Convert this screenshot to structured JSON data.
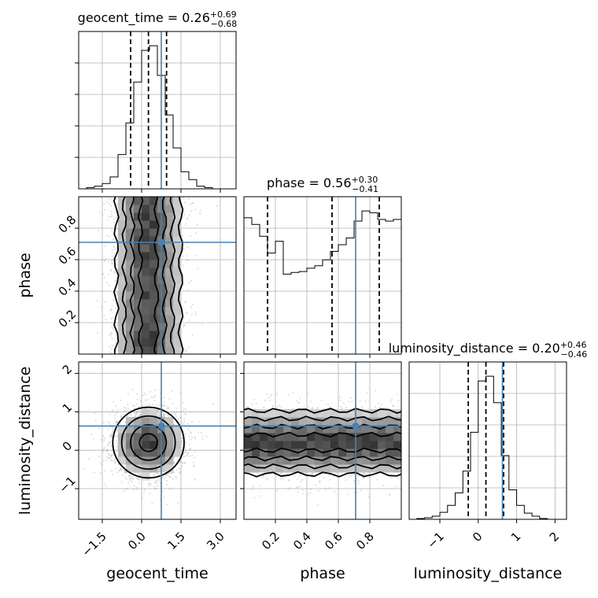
{
  "chart_data": {
    "type": "corner",
    "parameters": [
      "geocent_time",
      "phase",
      "luminosity_distance"
    ],
    "truths": {
      "geocent_time": 0.75,
      "phase": 0.71,
      "luminosity_distance": 0.63
    },
    "colors": {
      "truth": "#4682b4",
      "line": "#000000",
      "grid": "#b0b0b0",
      "hist2d_dark": "#333333",
      "scatter": "#999999"
    },
    "grid": true,
    "axes": {
      "geocent_time": {
        "range": [
          -2.4,
          3.6
        ],
        "ticks": [
          -1.5,
          0.0,
          1.5,
          3.0
        ],
        "tick_labels": [
          "−1.5",
          "0.0",
          "1.5",
          "3.0"
        ]
      },
      "phase": {
        "range": [
          0.0,
          1.0
        ],
        "ticks": [
          0.2,
          0.4,
          0.6,
          0.8
        ],
        "tick_labels": [
          "0.2",
          "0.4",
          "0.6",
          "0.8"
        ]
      },
      "luminosity_distance": {
        "range": [
          -1.8,
          2.3
        ],
        "ticks": [
          -1,
          0,
          1,
          2
        ],
        "tick_labels": [
          "−1",
          "0",
          "1",
          "2"
        ]
      }
    },
    "marginals": [
      {
        "parameter": "geocent_time",
        "title_main": "geocent_time = 0.26",
        "title_sup": "+0.69",
        "title_sub": "−0.68",
        "quantiles": [
          -0.42,
          0.26,
          0.95
        ],
        "bin_edges": [
          -2.4,
          -2.1,
          -1.8,
          -1.5,
          -1.2,
          -0.9,
          -0.6,
          -0.3,
          0.0,
          0.3,
          0.6,
          0.9,
          1.2,
          1.5,
          1.8,
          2.1,
          2.4,
          2.7,
          3.0,
          3.3,
          3.6
        ],
        "counts": [
          0,
          2,
          4,
          8,
          18,
          52,
          100,
          162,
          210,
          217,
          172,
          112,
          62,
          26,
          14,
          4,
          2,
          0,
          0,
          0
        ]
      },
      {
        "parameter": "phase",
        "title_main": "phase = 0.56",
        "title_sup": "+0.30",
        "title_sub": "−0.41",
        "quantiles": [
          0.15,
          0.56,
          0.86
        ],
        "bin_edges": [
          0.0,
          0.05,
          0.1,
          0.15,
          0.2,
          0.25,
          0.3,
          0.35,
          0.4,
          0.45,
          0.5,
          0.55,
          0.6,
          0.65,
          0.7,
          0.75,
          0.8,
          0.85,
          0.9,
          0.95,
          1.0
        ],
        "counts": [
          162,
          154,
          140,
          120,
          134,
          95,
          97,
          98,
          102,
          105,
          112,
          122,
          130,
          138,
          158,
          170,
          168,
          160,
          158,
          160
        ]
      },
      {
        "parameter": "luminosity_distance",
        "title_main": "luminosity_distance = 0.20",
        "title_sup": "+0.46",
        "title_sub": "−0.46",
        "quantiles": [
          -0.26,
          0.2,
          0.66
        ],
        "bin_edges": [
          -1.8,
          -1.6,
          -1.4,
          -1.2,
          -1.0,
          -0.8,
          -0.6,
          -0.4,
          -0.2,
          0.0,
          0.2,
          0.4,
          0.6,
          0.8,
          1.0,
          1.2,
          1.4,
          1.6,
          1.8,
          2.0,
          2.2
        ],
        "counts": [
          0,
          1,
          2,
          4,
          9,
          18,
          34,
          62,
          112,
          178,
          184,
          150,
          82,
          38,
          18,
          8,
          4,
          1,
          0,
          0
        ]
      }
    ],
    "pairs": [
      {
        "x": "geocent_time",
        "y": "phase"
      },
      {
        "x": "geocent_time",
        "y": "luminosity_distance"
      },
      {
        "x": "phase",
        "y": "luminosity_distance"
      }
    ]
  }
}
